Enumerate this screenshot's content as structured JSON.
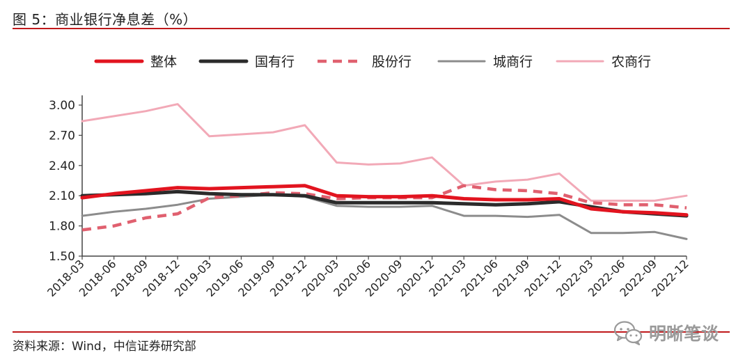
{
  "figure": {
    "title": "图 5：商业银行净息差（%）",
    "source": "资料来源：Wind，中信证券研究部",
    "watermark": "明晰笔谈",
    "watermark_icon": "wechat-icon",
    "accent_color": "#c0181b"
  },
  "chart_data": {
    "type": "line",
    "title": "",
    "xlabel": "",
    "ylabel": "",
    "ylim": [
      1.5,
      3.0
    ],
    "yticks": [
      "1.50",
      "1.80",
      "2.10",
      "2.40",
      "2.70",
      "3.00"
    ],
    "legend_position": "top",
    "grid": false,
    "categories": [
      "2018-03",
      "2018-06",
      "2018-09",
      "2018-12",
      "2019-03",
      "2019-06",
      "2019-09",
      "2019-12",
      "2020-03",
      "2020-06",
      "2020-09",
      "2020-12",
      "2021-03",
      "2021-06",
      "2021-09",
      "2021-12",
      "2022-03",
      "2022-06",
      "2022-09",
      "2022-12"
    ],
    "series": [
      {
        "name": "整体",
        "color": "#e2141f",
        "style": "solid-thick",
        "values": [
          2.08,
          2.12,
          2.15,
          2.18,
          2.17,
          2.18,
          2.19,
          2.2,
          2.1,
          2.09,
          2.09,
          2.1,
          2.07,
          2.06,
          2.06,
          2.07,
          1.97,
          1.94,
          1.93,
          1.91
        ]
      },
      {
        "name": "国有行",
        "color": "#2b2b2b",
        "style": "solid-thick",
        "values": [
          2.1,
          2.11,
          2.12,
          2.14,
          2.12,
          2.11,
          2.11,
          2.1,
          2.03,
          2.03,
          2.03,
          2.03,
          2.02,
          2.01,
          2.02,
          2.04,
          1.99,
          1.94,
          1.92,
          1.9
        ]
      },
      {
        "name": "股份行",
        "color": "#e0606f",
        "style": "dashed",
        "values": [
          1.76,
          1.8,
          1.88,
          1.92,
          2.08,
          2.1,
          2.13,
          2.12,
          2.07,
          2.08,
          2.08,
          2.08,
          2.2,
          2.16,
          2.15,
          2.12,
          2.03,
          2.01,
          2.01,
          1.98
        ]
      },
      {
        "name": "城商行",
        "color": "#8c8c8c",
        "style": "solid-thin",
        "values": [
          1.9,
          1.94,
          1.97,
          2.01,
          2.07,
          2.09,
          2.11,
          2.09,
          2.0,
          1.99,
          1.99,
          2.0,
          1.9,
          1.9,
          1.89,
          1.91,
          1.73,
          1.73,
          1.74,
          1.67
        ]
      },
      {
        "name": "农商行",
        "color": "#f2a9b7",
        "style": "solid-thin",
        "values": [
          2.84,
          2.89,
          2.94,
          3.01,
          2.69,
          2.71,
          2.73,
          2.8,
          2.43,
          2.41,
          2.42,
          2.48,
          2.2,
          2.24,
          2.26,
          2.32,
          2.05,
          2.05,
          2.05,
          2.1
        ]
      }
    ]
  }
}
